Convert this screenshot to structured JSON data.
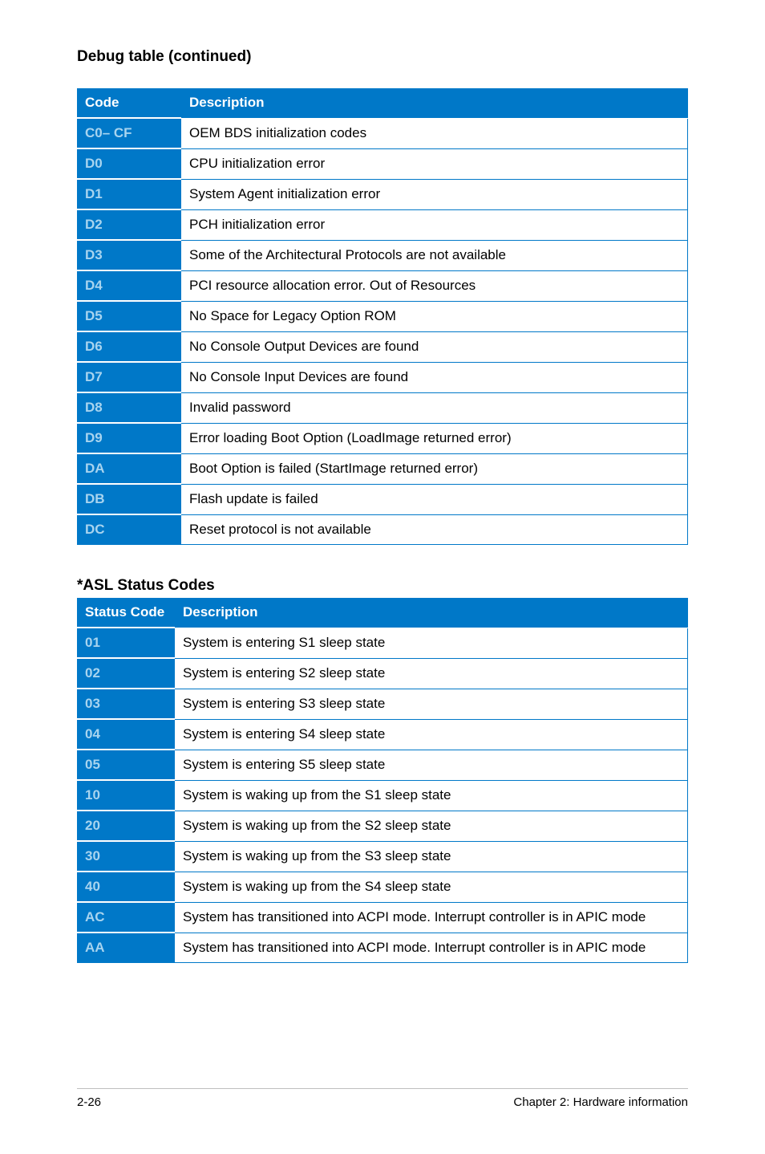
{
  "heading1": "Debug table (continued)",
  "table1": {
    "headers": {
      "code": "Code",
      "desc": "Description"
    },
    "rows": [
      {
        "code": "C0– CF",
        "desc": "OEM BDS initialization codes"
      },
      {
        "code": "D0",
        "desc": "CPU initialization error"
      },
      {
        "code": "D1",
        "desc": "System Agent initialization error"
      },
      {
        "code": "D2",
        "desc": "PCH initialization error"
      },
      {
        "code": "D3",
        "desc": "Some of the Architectural Protocols are not available"
      },
      {
        "code": "D4",
        "desc": "PCI resource allocation error.  Out of Resources"
      },
      {
        "code": "D5",
        "desc": "No Space for Legacy Option ROM"
      },
      {
        "code": "D6",
        "desc": "No Console Output Devices are found"
      },
      {
        "code": "D7",
        "desc": "No Console Input Devices are found"
      },
      {
        "code": "D8",
        "desc": "Invalid password"
      },
      {
        "code": "D9",
        "desc": "Error loading Boot Option (LoadImage returned error)"
      },
      {
        "code": "DA",
        "desc": "Boot Option is failed (StartImage returned error)"
      },
      {
        "code": "DB",
        "desc": "Flash update is failed"
      },
      {
        "code": "DC",
        "desc": "Reset protocol is not available"
      }
    ]
  },
  "heading2": "*ASL Status Codes",
  "table2": {
    "headers": {
      "code": "Status Code",
      "desc": "Description"
    },
    "rows": [
      {
        "code": "01",
        "desc": "System is entering S1 sleep state"
      },
      {
        "code": "02",
        "desc": "System is entering S2 sleep state"
      },
      {
        "code": "03",
        "desc": "System is entering S3 sleep state"
      },
      {
        "code": "04",
        "desc": "System is entering S4 sleep state"
      },
      {
        "code": "05",
        "desc": "System is entering S5 sleep state"
      },
      {
        "code": "10",
        "desc": "System is waking up from the S1 sleep state"
      },
      {
        "code": "20",
        "desc": "System is waking up from the S2 sleep state"
      },
      {
        "code": "30",
        "desc": "System is waking up from the S3 sleep state"
      },
      {
        "code": "40",
        "desc": "System is waking up from the S4 sleep state"
      },
      {
        "code": "AC",
        "desc": "System has transitioned into ACPI mode. Interrupt controller is in APIC mode"
      },
      {
        "code": "AA",
        "desc": "System has transitioned into ACPI mode. Interrupt controller is in APIC mode"
      }
    ]
  },
  "footer": {
    "left": "2-26",
    "right": "Chapter 2: Hardware information"
  },
  "colors": {
    "header_bg": "#0078c8",
    "header_text": "#ffffff",
    "code_text": "#a8d4ef",
    "border": "#0078c8",
    "footer_rule": "#bfbfbf"
  }
}
